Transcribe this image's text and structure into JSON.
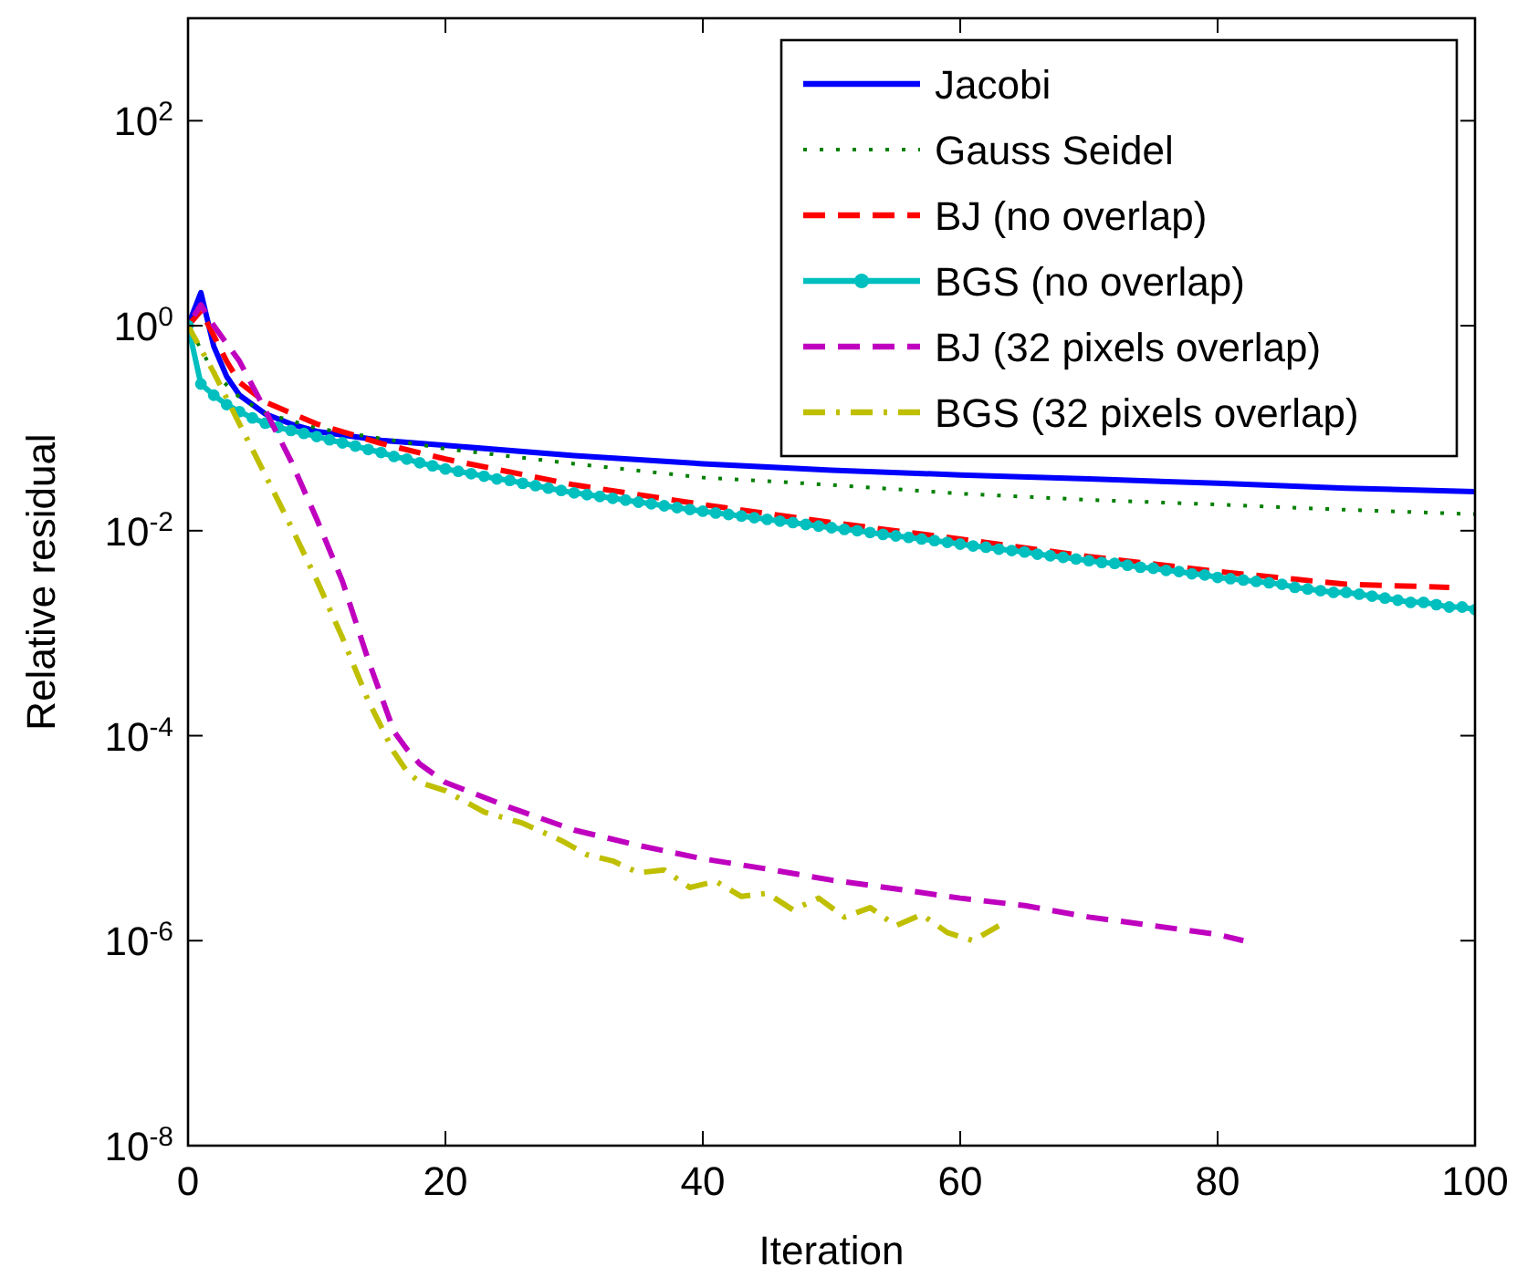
{
  "chart_data": {
    "type": "line",
    "xlabel": "Iteration",
    "ylabel": "Relative residual",
    "log": "y",
    "grid": false,
    "legend": "top right",
    "xlim": [
      0,
      100
    ],
    "xticks": [
      0,
      20,
      40,
      60,
      80,
      100
    ],
    "ylim": [
      1e-08,
      1000
    ],
    "yticks": [
      {
        "value": 1e-08,
        "label": "10$^{-8}$"
      },
      {
        "value": 1e-06,
        "label": "10$^{-6}$"
      },
      {
        "value": 0.0001,
        "label": "10$^{-4}$"
      },
      {
        "value": 0.01,
        "label": "10$^{-2}$"
      },
      {
        "value": 1,
        "label": "10$^{0}$"
      },
      {
        "value": 100,
        "label": "10$^{2}$"
      }
    ],
    "series": [
      {
        "name": "Jacobi",
        "color": "#0000ff",
        "line_style": "solid",
        "marker": "none",
        "x": [
          0,
          1,
          2,
          3,
          4,
          6,
          8,
          10,
          15,
          20,
          30,
          40,
          50,
          60,
          70,
          80,
          90,
          100
        ],
        "values": [
          1,
          2.1,
          0.63,
          0.32,
          0.21,
          0.138,
          0.11,
          0.093,
          0.076,
          0.068,
          0.054,
          0.045,
          0.039,
          0.035,
          0.032,
          0.029,
          0.026,
          0.024
        ]
      },
      {
        "name": "Gauss Seidel",
        "color": "#008000",
        "line_style": "dotted",
        "marker": "none",
        "x": [
          0,
          2,
          4,
          6,
          10,
          20,
          30,
          40,
          50,
          60,
          70,
          80,
          90,
          100
        ],
        "values": [
          1,
          0.35,
          0.2,
          0.14,
          0.1,
          0.063,
          0.045,
          0.033,
          0.028,
          0.023,
          0.02,
          0.018,
          0.016,
          0.0145
        ]
      },
      {
        "name": "BJ (no overlap)",
        "color": "#ff0000",
        "line_style": "dashed",
        "marker": "none",
        "x": [
          0,
          1,
          2,
          3,
          4,
          6,
          10,
          15,
          20,
          30,
          40,
          50,
          60,
          70,
          80,
          90,
          98
        ],
        "values": [
          1,
          1.4,
          0.8,
          0.45,
          0.28,
          0.18,
          0.11,
          0.071,
          0.05,
          0.028,
          0.018,
          0.012,
          0.0083,
          0.0056,
          0.004,
          0.003,
          0.0028
        ]
      },
      {
        "name": "BGS (no overlap)",
        "color": "#00bfbf",
        "line_style": "solid",
        "marker": "circle",
        "x": [
          0,
          1,
          2,
          3,
          4,
          5,
          6,
          7,
          8,
          9,
          10,
          11,
          12,
          13,
          14,
          15,
          16,
          17,
          18,
          19,
          20,
          21,
          22,
          23,
          24,
          25,
          26,
          27,
          28,
          29,
          30,
          31,
          32,
          33,
          34,
          35,
          36,
          37,
          38,
          39,
          40,
          41,
          42,
          43,
          44,
          45,
          46,
          47,
          48,
          49,
          50,
          51,
          52,
          53,
          54,
          55,
          56,
          57,
          58,
          59,
          60,
          61,
          62,
          63,
          64,
          65,
          66,
          67,
          68,
          69,
          70,
          71,
          72,
          73,
          74,
          75,
          76,
          77,
          78,
          79,
          80,
          81,
          82,
          83,
          84,
          85,
          86,
          87,
          88,
          89,
          90,
          91,
          92,
          93,
          94,
          95,
          96,
          97,
          98,
          99,
          100
        ],
        "values": [
          1,
          0.27,
          0.21,
          0.17,
          0.145,
          0.126,
          0.112,
          0.102,
          0.095,
          0.089,
          0.083,
          0.077,
          0.072,
          0.067,
          0.062,
          0.058,
          0.053,
          0.05,
          0.046,
          0.043,
          0.04,
          0.038,
          0.036,
          0.034,
          0.032,
          0.031,
          0.029,
          0.0275,
          0.026,
          0.0247,
          0.0234,
          0.0225,
          0.0216,
          0.0207,
          0.0199,
          0.019,
          0.0183,
          0.0175,
          0.0168,
          0.0161,
          0.0155,
          0.0149,
          0.0144,
          0.0139,
          0.0134,
          0.0129,
          0.0124,
          0.012,
          0.0115,
          0.0111,
          0.0107,
          0.0103,
          0.01,
          0.0096,
          0.0092,
          0.0089,
          0.0086,
          0.0083,
          0.008,
          0.0077,
          0.0074,
          0.0071,
          0.0069,
          0.0066,
          0.0064,
          0.0062,
          0.0059,
          0.0057,
          0.0055,
          0.0053,
          0.0051,
          0.0049,
          0.0048,
          0.0046,
          0.0044,
          0.0043,
          0.0041,
          0.004,
          0.0038,
          0.0037,
          0.0035,
          0.0034,
          0.0033,
          0.0032,
          0.0031,
          0.003,
          0.0028,
          0.0027,
          0.0026,
          0.0025,
          0.0025,
          0.0024,
          0.0023,
          0.0022,
          0.0021,
          0.002,
          0.002,
          0.0019,
          0.0018,
          0.0018,
          0.0017
        ]
      },
      {
        "name": "BJ (32 pixels overlap)",
        "color": "#bf00bf",
        "line_style": "dashed",
        "marker": "none",
        "x": [
          0,
          1,
          2,
          4,
          6,
          8,
          10,
          12,
          14,
          16,
          17,
          18,
          20,
          25,
          30,
          35,
          40,
          45,
          50,
          55,
          60,
          65,
          70,
          75,
          80,
          82
        ],
        "values": [
          1,
          1.6,
          1.0,
          0.45,
          0.15,
          0.048,
          0.013,
          0.0032,
          0.00055,
          0.00011,
          7.4e-05,
          5.3e-05,
          3.5e-05,
          2e-05,
          1.2e-05,
          8.5e-06,
          6.3e-06,
          5e-06,
          3.9e-06,
          3.2e-06,
          2.6e-06,
          2.2e-06,
          1.7e-06,
          1.4e-06,
          1.15e-06,
          1e-06
        ]
      },
      {
        "name": "BGS (32 pixels overlap)",
        "color": "#bfbf00",
        "line_style": "dashdot",
        "marker": "none",
        "x": [
          0,
          2,
          4,
          6,
          8,
          10,
          12,
          14,
          16,
          17,
          18,
          20,
          23,
          26,
          29,
          31,
          33,
          35,
          37,
          39,
          41,
          43,
          45,
          47,
          49,
          51,
          53,
          55,
          57,
          59,
          61,
          63
        ],
        "values": [
          1,
          0.35,
          0.11,
          0.035,
          0.011,
          0.0033,
          0.0009,
          0.00022,
          6.9e-05,
          4.5e-05,
          3.5e-05,
          2.9e-05,
          1.8e-05,
          1.4e-05,
          9.5e-06,
          6.9e-06,
          6e-06,
          4.6e-06,
          4.9e-06,
          3.3e-06,
          3.8e-06,
          2.7e-06,
          2.9e-06,
          2e-06,
          2.6e-06,
          1.7e-06,
          2.1e-06,
          1.4e-06,
          1.8e-06,
          1.2e-06,
          1e-06,
          1.4e-06
        ]
      }
    ]
  }
}
